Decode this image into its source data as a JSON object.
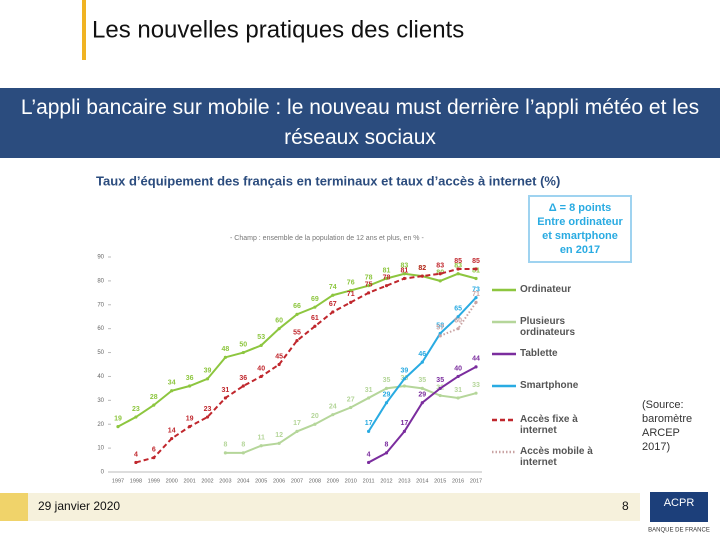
{
  "header": {
    "title": "Les nouvelles pratiques des clients",
    "banner": "L’appli bancaire sur mobile : le nouveau must derrière l’appli météo et les réseaux sociaux"
  },
  "chart_data": {
    "type": "line",
    "title": "Taux d’équipement des français en terminaux et taux d’accès à internet (%)",
    "subtitle": "- Champ : ensemble de la population de 12 ans et plus, en % -",
    "annotation": "Δ = 8 points Entre ordinateur et smartphone en 2017",
    "source": "(Source: baromètre ARCEP 2017)",
    "categories": [
      "1997",
      "1998",
      "1999",
      "2000",
      "2001",
      "2002",
      "2003",
      "2004",
      "2005",
      "2006",
      "2007",
      "2008",
      "2009",
      "2010",
      "2011",
      "2012",
      "2013",
      "2014",
      "2015",
      "2016",
      "2017"
    ],
    "ylim": [
      0,
      90
    ],
    "yticks": [
      0,
      10,
      20,
      30,
      40,
      50,
      60,
      70,
      80,
      90
    ],
    "series": [
      {
        "name": "Ordinateur",
        "color": "#8dc63f",
        "dash": "solid",
        "values": [
          19,
          23,
          28,
          34,
          36,
          39,
          48,
          50,
          53,
          60,
          66,
          69,
          74,
          76,
          78,
          81,
          83,
          82,
          80,
          83,
          81
        ]
      },
      {
        "name": "Plusieurs ordinateurs",
        "color": "#b5d69a",
        "dash": "solid",
        "values": [
          null,
          null,
          null,
          null,
          null,
          null,
          8,
          8,
          11,
          12,
          17,
          20,
          24,
          27,
          31,
          35,
          36,
          35,
          32,
          31,
          33
        ]
      },
      {
        "name": "Tablette",
        "color": "#7b2d9e",
        "dash": "solid",
        "values": [
          null,
          null,
          null,
          null,
          null,
          null,
          null,
          null,
          null,
          null,
          null,
          null,
          null,
          null,
          4,
          8,
          17,
          29,
          35,
          40,
          44
        ]
      },
      {
        "name": "Smartphone",
        "color": "#29abe2",
        "dash": "solid",
        "values": [
          null,
          null,
          null,
          null,
          null,
          null,
          null,
          null,
          null,
          null,
          null,
          null,
          null,
          null,
          17,
          29,
          39,
          46,
          58,
          65,
          73
        ]
      },
      {
        "name": "Accès fixe à internet",
        "color": "#c0272d",
        "dash": "dashed",
        "values": [
          null,
          4,
          6,
          14,
          19,
          23,
          31,
          36,
          40,
          45,
          55,
          61,
          67,
          71,
          75,
          78,
          81,
          82,
          83,
          85,
          85
        ]
      },
      {
        "name": "Accès mobile à internet",
        "color": "#c9a3a3",
        "dash": "dotted",
        "values": [
          null,
          null,
          null,
          null,
          null,
          null,
          null,
          null,
          null,
          null,
          null,
          null,
          null,
          null,
          null,
          null,
          null,
          null,
          57,
          60,
          71
        ]
      }
    ]
  },
  "footer": {
    "date": "29 janvier 2020",
    "page": "8",
    "logo": "ACPR",
    "logo_sub": "BANQUE DE FRANCE"
  }
}
